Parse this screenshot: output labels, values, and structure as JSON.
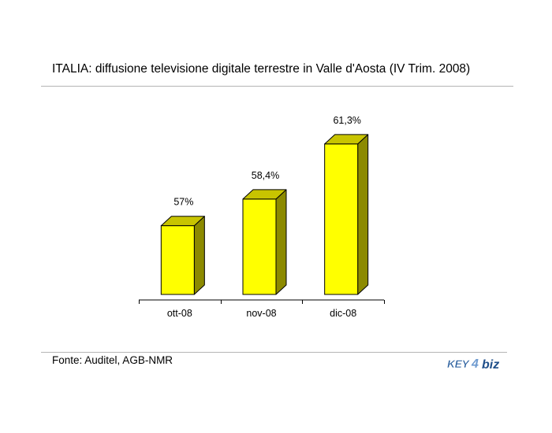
{
  "title": "ITALIA: diffusione televisione digitale terrestre in Valle d'Aosta (IV Trim. 2008)",
  "source": "Fonte: Auditel, AGB-NMR",
  "logo": {
    "left": "KEY",
    "mid": "4",
    "right": "biz"
  },
  "colors": {
    "bar_front": "#ffff00",
    "bar_side": "#8c8a00",
    "bar_top": "#c8c400",
    "outline": "#000000",
    "logo_left": "#2a5f9e",
    "logo_right": "#1f4f8a"
  },
  "chart_data": {
    "type": "bar",
    "categories": [
      "ott-08",
      "nov-08",
      "dic-08"
    ],
    "values": [
      57,
      58.4,
      61.3
    ],
    "data_labels": [
      "57%",
      "58,4%",
      "61,3%"
    ],
    "unit": "%",
    "title": "ITALIA: diffusione televisione digitale terrestre in Valle d'Aosta (IV Trim. 2008)",
    "grid": false,
    "legend": false,
    "three_d": true
  }
}
